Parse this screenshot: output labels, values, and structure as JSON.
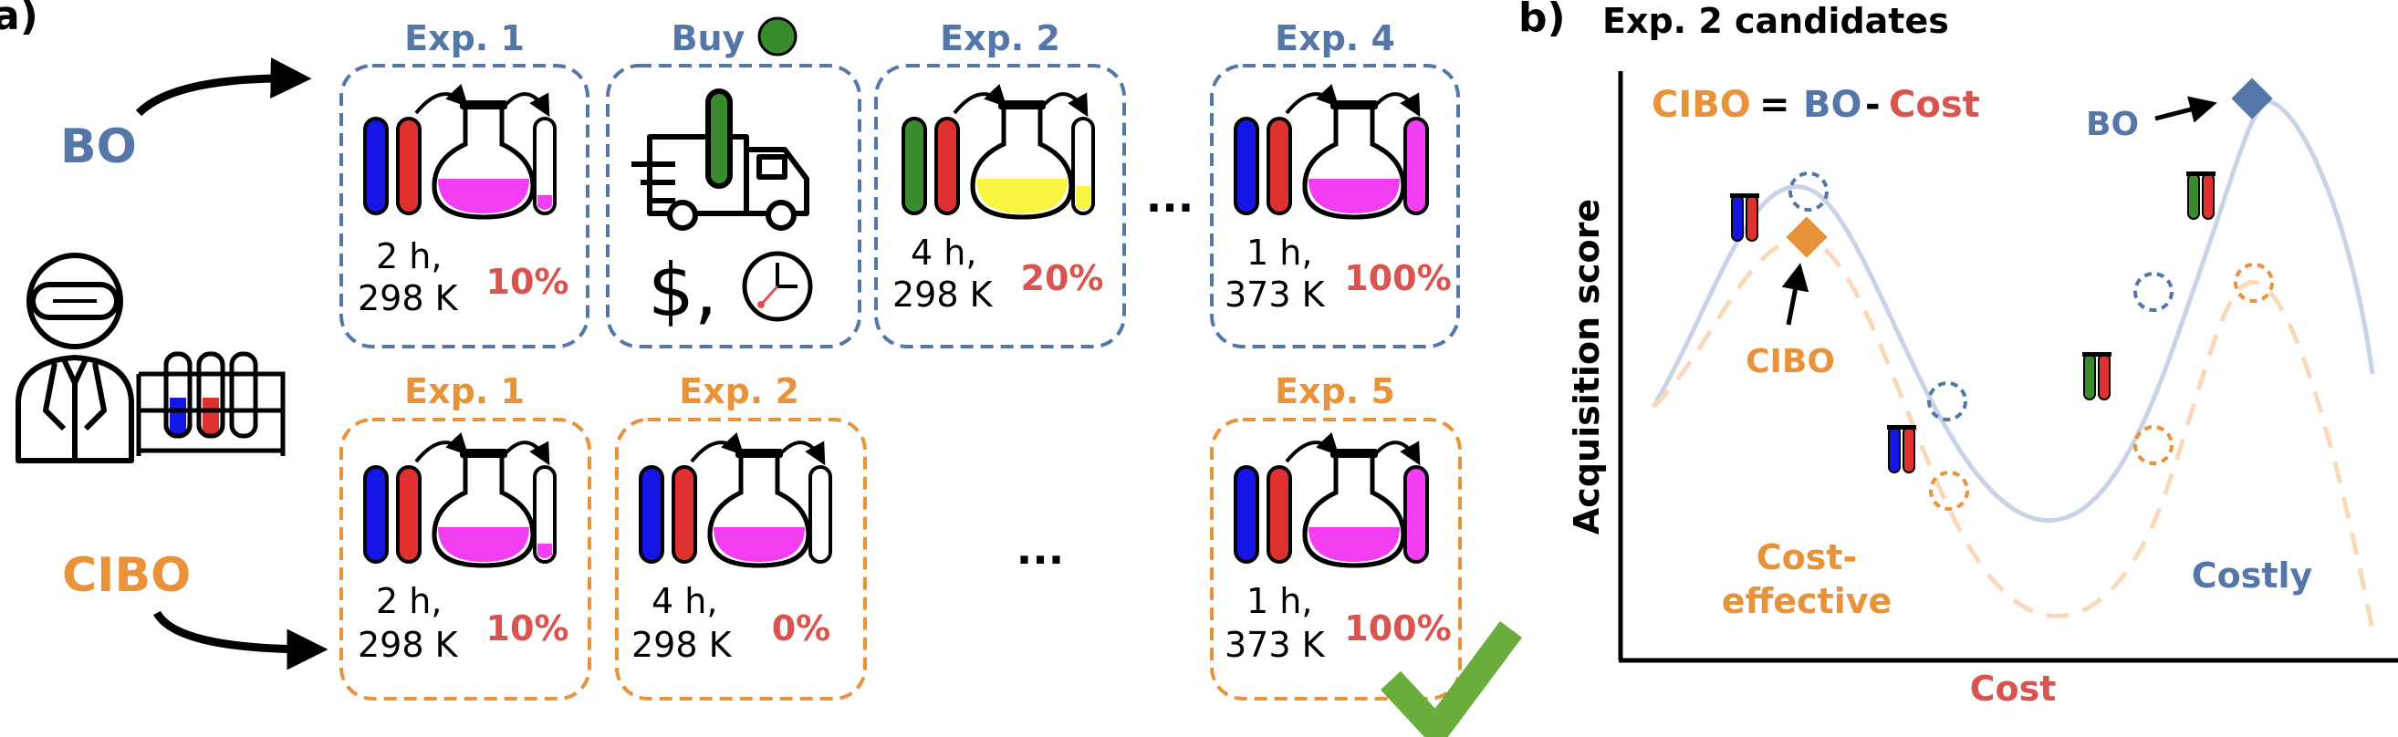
{
  "colors": {
    "bo": "#5477a8",
    "cibo": "#e8923a",
    "red": "#d9534f",
    "tube_blue": "#1515e6",
    "tube_red": "#e03131",
    "tube_green": "#3a8a2e",
    "magenta": "#f03ef0",
    "yellow": "#f7f442",
    "check": "#6aad3d",
    "bo_curve": "#c8d3e6",
    "cibo_curve": "#f8d9b8"
  },
  "panel_a": {
    "label": "a)",
    "bo_label": "BO",
    "cibo_label": "CIBO",
    "ellipsis": "...",
    "bo_row": [
      {
        "title": "Exp. 1",
        "time": "2 h,",
        "temp": "298 K",
        "yield": "10%"
      },
      {
        "title": "Buy",
        "money": "$,"
      },
      {
        "title": "Exp. 2",
        "time": "4 h,",
        "temp": "298 K",
        "yield": "20%"
      },
      {
        "title": "Exp. 4",
        "time": "1 h,",
        "temp": "373 K",
        "yield": "100%"
      }
    ],
    "cibo_row": [
      {
        "title": "Exp. 1",
        "time": "2 h,",
        "temp": "298 K",
        "yield": "10%"
      },
      {
        "title": "Exp. 2",
        "time": "4 h,",
        "temp": "298 K",
        "yield": "0%"
      },
      {
        "title": "Exp. 5",
        "time": "1 h,",
        "temp": "373 K",
        "yield": "100%"
      }
    ]
  },
  "panel_b": {
    "label": "b)",
    "title": "Exp. 2 candidates",
    "equation": {
      "lhs": "CIBO",
      "eq": "=",
      "bo": "BO",
      "minus": "-",
      "cost": "Cost"
    },
    "bo_pointer": "BO",
    "cibo_pointer": "CIBO",
    "region_left": [
      "Cost-",
      "effective"
    ],
    "region_right": "Costly",
    "xlabel": "Cost",
    "ylabel": "Acquisition score"
  }
}
